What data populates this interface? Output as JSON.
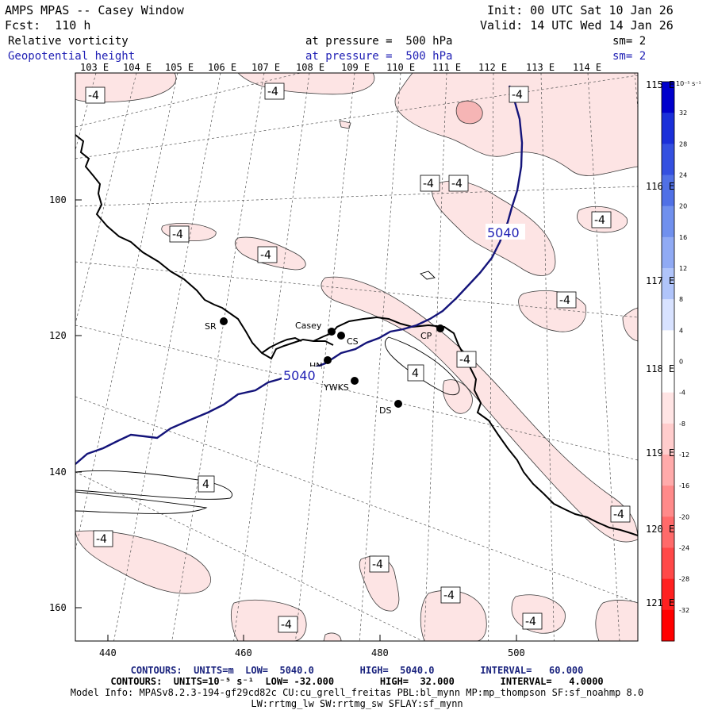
{
  "header": {
    "title": "AMPS MPAS -- Casey Window",
    "init": "Init: 00 UTC Sat 10 Jan 26",
    "forecast": "Fcst:  110 h",
    "valid": "Valid: 14 UTC Wed 14 Jan 26",
    "field1": {
      "name": "Relative vorticity",
      "level": "at pressure =  500 hPa",
      "smooth": "sm= 2"
    },
    "field2": {
      "name": "Geopotential height",
      "level": "at pressure =  500 hPa",
      "smooth": "sm= 2"
    }
  },
  "lon_labels_top": [
    "103 E",
    "104 E",
    "105 E",
    "106 E",
    "107 E",
    "108 E",
    "109 E",
    "110 E",
    "111 E",
    "112 E",
    "113 E",
    "114 E"
  ],
  "lon_labels_right": [
    "115 E",
    "116 E",
    "117 E",
    "118 E",
    "119 E",
    "120 E",
    "121 E"
  ],
  "x_ticks": [
    "440",
    "460",
    "480",
    "500"
  ],
  "y_ticks": [
    "100",
    "120",
    "140",
    "160"
  ],
  "stations": [
    {
      "id": "SR"
    },
    {
      "id": "Casey"
    },
    {
      "id": "CS"
    },
    {
      "id": "CP"
    },
    {
      "id": "HN"
    },
    {
      "id": "YWKS"
    },
    {
      "id": "DS"
    }
  ],
  "height_contour_label": "5040",
  "vorticity_labels": [
    "-4",
    "4"
  ],
  "colorbar": {
    "units": "10⁻⁵ s⁻¹",
    "labels": [
      "32",
      "28",
      "24",
      "20",
      "16",
      "12",
      "8",
      "4",
      "0",
      "-4",
      "-8",
      "-12",
      "-16",
      "-20",
      "-24",
      "-28",
      "-32"
    ],
    "colors": [
      "#0000cc",
      "#1a2fd9",
      "#3450e0",
      "#5070e6",
      "#7090ee",
      "#90aaf4",
      "#b0c4fa",
      "#d8e2ff",
      "#ffffff",
      "#ffffff",
      "#ffe4e4",
      "#ffcccc",
      "#ffaaaa",
      "#ff8a8a",
      "#ff6a6a",
      "#ff4848",
      "#ff2020",
      "#ff0000"
    ]
  },
  "colors": {
    "height_contour": "#14147a",
    "neg_fill": "#fde4e4",
    "neg_fill_dark": "#f7b6b6"
  },
  "footer": {
    "contours1": "CONTOURS:  UNITS=m  LOW=  5040.0        HIGH=  5040.0        INTERVAL=   60.000",
    "contours2": "CONTOURS:  UNITS=10⁻⁵ s⁻¹  LOW= -32.000        HIGH=  32.000        INTERVAL=   4.0000",
    "model1": "Model Info: MPASv8.2.3-194-gf29cd82c CU:cu_grell_freitas PBL:bl_mynn MP:mp_thompson SF:sf_noahmp 8.0",
    "model2": "LW:rrtmg_lw SW:rrtmg_sw SFLAY:sf_mynn"
  }
}
